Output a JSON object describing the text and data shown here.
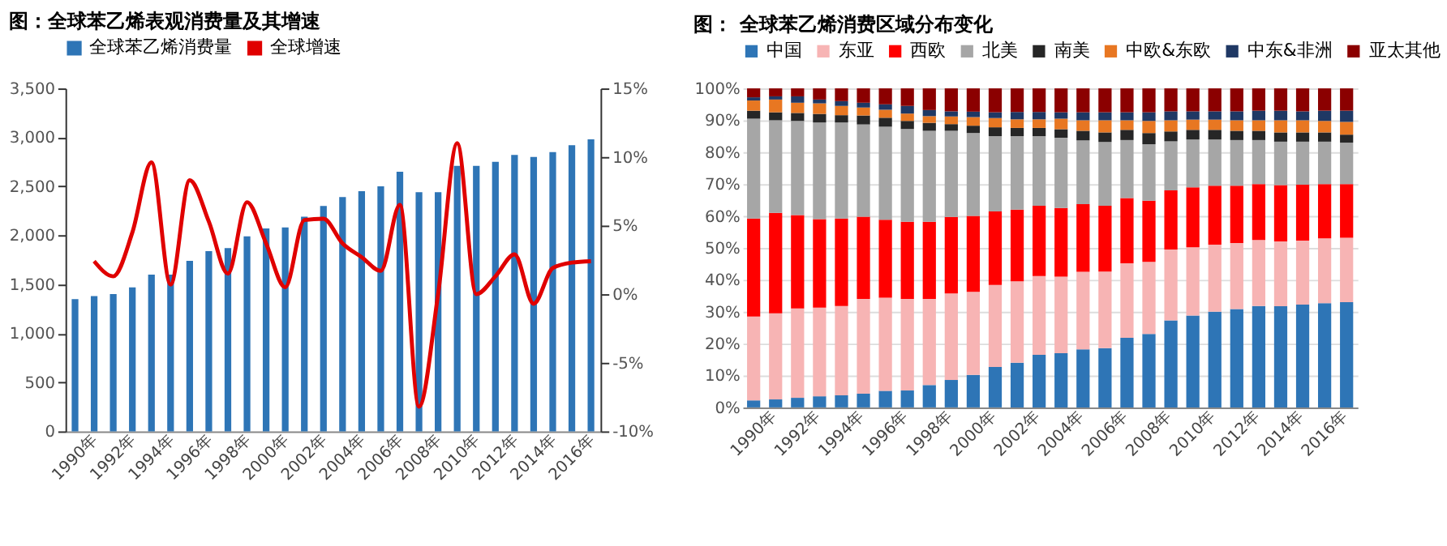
{
  "chart_data": [
    {
      "type": "bar",
      "title": "图：全球苯乙烯表观消费量及其增速",
      "categories": [
        "1990年",
        null,
        "1992年",
        null,
        "1994年",
        null,
        "1996年",
        null,
        "1998年",
        null,
        "2000年",
        null,
        "2002年",
        null,
        "2004年",
        null,
        "2006年",
        null,
        "2008年",
        null,
        "2010年",
        null,
        "2012年",
        null,
        "2014年",
        null,
        "2016年",
        null
      ],
      "series": [
        {
          "name": "全球苯乙烯消费量",
          "color": "#2e75b6",
          "values": [
            1350,
            1380,
            1400,
            1470,
            1600,
            1600,
            1740,
            1840,
            1870,
            1990,
            2070,
            2080,
            2190,
            2300,
            2390,
            2450,
            2500,
            2650,
            2440,
            2440,
            2710,
            2710,
            2750,
            2820,
            2800,
            2850,
            2920,
            2980
          ]
        },
        {
          "name": "全球增速",
          "color": "#e00000",
          "type": "line",
          "axis": "y2",
          "values": [
            null,
            2.4,
            1.3,
            4.5,
            9.6,
            0.7,
            8.3,
            5.3,
            1.5,
            6.7,
            3.7,
            0.5,
            5.4,
            5.5,
            3.7,
            2.7,
            1.7,
            6.5,
            -8.2,
            0.0,
            11.0,
            0.0,
            1.3,
            2.9,
            -0.7,
            1.9,
            2.3,
            2.4
          ]
        }
      ],
      "ylim": [
        0,
        3500
      ],
      "yticks": [
        0,
        500,
        {
          "value": 1000,
          "label": "1,000"
        },
        {
          "value": 1500,
          "label": "1,500"
        },
        {
          "value": 2000,
          "label": "2,000"
        },
        {
          "value": 2500,
          "label": "2,500"
        },
        {
          "value": 3000,
          "label": "3,000"
        },
        {
          "value": 3500,
          "label": "3,500"
        }
      ],
      "y2lim": [
        -10,
        15
      ],
      "y2ticks": [
        {
          "value": -10,
          "label": "-10%"
        },
        {
          "value": -5,
          "label": "-5%"
        },
        {
          "value": 0,
          "label": "0%"
        },
        {
          "value": 5,
          "label": "5%"
        },
        {
          "value": 10,
          "label": "10%"
        },
        {
          "value": 15,
          "label": "15%"
        }
      ],
      "legend": "top",
      "grid": false,
      "marker": "none",
      "line_style": "solid"
    },
    {
      "type": "bar",
      "title": "图：  全球苯乙烯消费区域分布变化",
      "stacked": true,
      "categories": [
        "1990年",
        null,
        "1992年",
        null,
        "1994年",
        null,
        "1996年",
        null,
        "1998年",
        null,
        "2000年",
        null,
        "2002年",
        null,
        "2004年",
        null,
        "2006年",
        null,
        "2008年",
        null,
        "2010年",
        null,
        "2012年",
        null,
        "2014年",
        null,
        "2016年",
        null
      ],
      "series": [
        {
          "name": "中国",
          "color": "#2e75b6",
          "values": [
            2.2,
            2.5,
            3.0,
            3.5,
            3.8,
            4.3,
            5.2,
            5.3,
            7.0,
            8.6,
            10.2,
            12.7,
            14.0,
            16.5,
            17.0,
            18.2,
            18.6,
            21.8,
            23.0,
            27.3,
            28.8,
            30.0,
            30.8,
            31.8,
            31.7,
            32.2,
            32.7,
            33.0
          ]
        },
        {
          "name": "东亚",
          "color": "#f7b4b4",
          "values": [
            26.3,
            27.0,
            28.0,
            27.8,
            28.0,
            29.7,
            29.2,
            28.7,
            27.0,
            27.1,
            26.0,
            25.7,
            25.5,
            24.7,
            24.0,
            24.3,
            24.0,
            23.4,
            22.6,
            22.2,
            21.4,
            21.0,
            20.7,
            20.7,
            20.3,
            20.1,
            20.3,
            20.2
          ]
        },
        {
          "name": "西欧",
          "color": "#ff0000",
          "values": [
            30.7,
            31.5,
            29.3,
            27.7,
            27.4,
            25.8,
            24.4,
            24.2,
            24.2,
            24.0,
            23.8,
            23.0,
            22.5,
            22.0,
            21.5,
            21.2,
            20.6,
            20.4,
            19.2,
            18.5,
            18.8,
            18.5,
            18.0,
            17.5,
            17.7,
            17.5,
            17.0,
            16.8
          ]
        },
        {
          "name": "北美",
          "color": "#a6a6a6",
          "values": [
            31.3,
            29.0,
            29.5,
            30.3,
            30.1,
            28.9,
            29.2,
            29.1,
            28.5,
            27.0,
            26.0,
            23.6,
            23.0,
            21.8,
            22.0,
            20.0,
            20.0,
            18.2,
            17.7,
            15.4,
            15.0,
            14.5,
            14.3,
            13.8,
            13.6,
            13.5,
            13.3,
            13.0
          ]
        },
        {
          "name": "南美",
          "color": "#262626",
          "values": [
            2.5,
            2.5,
            2.5,
            2.7,
            2.3,
            2.8,
            2.8,
            2.5,
            2.5,
            2.1,
            2.3,
            2.8,
            2.6,
            2.6,
            2.7,
            3.0,
            3.0,
            3.2,
            3.5,
            3.1,
            3.0,
            3.0,
            2.9,
            2.9,
            2.9,
            2.9,
            2.9,
            2.5
          ]
        },
        {
          "name": "中欧&东欧",
          "color": "#e87722",
          "values": [
            3.2,
            4.0,
            3.2,
            3.3,
            2.9,
            2.5,
            2.5,
            2.3,
            2.1,
            2.4,
            2.7,
            2.9,
            2.7,
            2.7,
            3.3,
            3.3,
            3.8,
            3.0,
            3.8,
            3.5,
            3.2,
            3.2,
            3.3,
            3.3,
            3.8,
            3.8,
            3.6,
            4.0
          ]
        },
        {
          "name": "中东&非洲",
          "color": "#1f3864",
          "values": [
            1.0,
            1.0,
            2.0,
            1.2,
            1.5,
            1.5,
            1.7,
            2.4,
            1.9,
            1.6,
            1.7,
            1.8,
            2.3,
            2.3,
            2.0,
            2.5,
            2.5,
            2.5,
            2.7,
            2.8,
            2.6,
            2.6,
            2.8,
            3.0,
            3.0,
            2.8,
            3.2,
            3.5
          ]
        },
        {
          "name": "亚太其他",
          "color": "#8b0000",
          "values": [
            2.8,
            2.5,
            2.5,
            3.5,
            4.0,
            4.5,
            5.0,
            5.5,
            6.8,
            7.2,
            7.3,
            7.5,
            7.4,
            7.4,
            7.5,
            7.5,
            7.5,
            7.5,
            7.5,
            7.2,
            7.2,
            7.2,
            7.2,
            7.0,
            7.0,
            7.2,
            7.0,
            7.0
          ]
        }
      ],
      "ylim": [
        0,
        100
      ],
      "yticks": [
        {
          "value": 0,
          "label": "0%"
        },
        {
          "value": 10,
          "label": "10%"
        },
        {
          "value": 20,
          "label": "20%"
        },
        {
          "value": 30,
          "label": "30%"
        },
        {
          "value": 40,
          "label": "40%"
        },
        {
          "value": 50,
          "label": "50%"
        },
        {
          "value": 60,
          "label": "60%"
        },
        {
          "value": 70,
          "label": "70%"
        },
        {
          "value": 80,
          "label": "80%"
        },
        {
          "value": 90,
          "label": "90%"
        },
        {
          "value": 100,
          "label": "100%"
        }
      ],
      "legend": "top",
      "grid": "y"
    }
  ]
}
